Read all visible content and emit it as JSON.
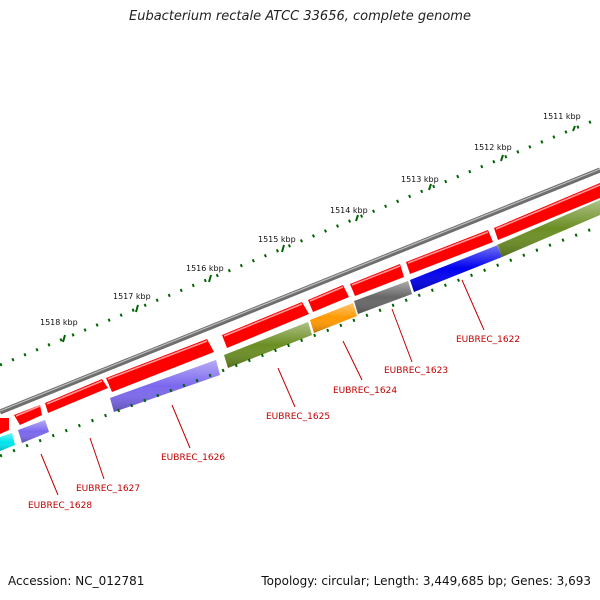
{
  "title": "Eubacterium rectale ATCC 33656, complete genome",
  "footer": {
    "accession": "Accession: NC_012781",
    "summary": "Topology: circular; Length: 3,449,685 bp; Genes: 3,693"
  },
  "ruler": {
    "labels": [
      "1511 kbp",
      "1512 kbp",
      "1513 kbp",
      "1514 kbp",
      "1515 kbp",
      "1516 kbp",
      "1517 kbp",
      "1518 kbp"
    ]
  },
  "genes": [
    {
      "name": "EUBREC_1622",
      "color": "#0000ee"
    },
    {
      "name": "EUBREC_1623",
      "color": "#666666"
    },
    {
      "name": "EUBREC_1624",
      "color": "#ff9900"
    },
    {
      "name": "EUBREC_1625",
      "color": "#6b8e23"
    },
    {
      "name": "EUBREC_1626",
      "color": "#7b68ee"
    },
    {
      "name": "EUBREC_1627",
      "color": "#7b68ee"
    },
    {
      "name": "EUBREC_1628",
      "color": "#00e5ee"
    }
  ],
  "colors": {
    "backbone": "#808080",
    "cds_forward": "#ff0000",
    "tick": "#006400",
    "label": "#c00000"
  }
}
